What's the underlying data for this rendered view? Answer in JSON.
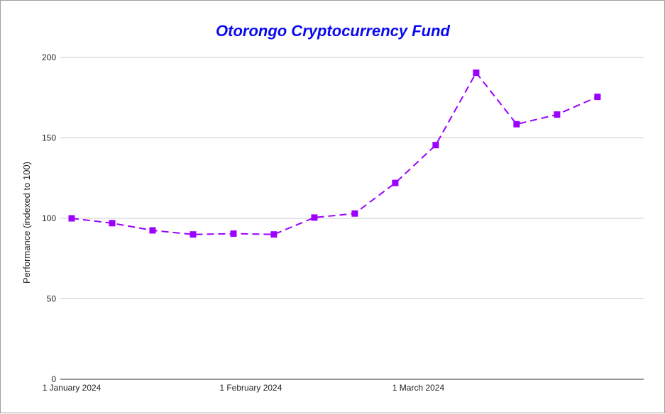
{
  "chart_data": {
    "type": "line",
    "title": "Otorongo Cryptocurrency Fund",
    "xlabel": "",
    "ylabel": "Performance (indexed to 100)",
    "ylim": [
      0,
      200
    ],
    "yticks": [
      0,
      50,
      100,
      150,
      200
    ],
    "x_tick_labels": [
      "1 January 2024",
      "1 February 2024",
      "1 March 2024"
    ],
    "x_tick_dates": [
      "2024-01-01",
      "2024-02-01",
      "2024-03-01"
    ],
    "xlim": [
      "2024-01-01",
      "2024-04-09"
    ],
    "grid": true,
    "line_style": "dashed",
    "marker": "square",
    "series": [
      {
        "x": [
          "2024-01-01",
          "2024-01-08",
          "2024-01-15",
          "2024-01-22",
          "2024-01-29",
          "2024-02-05",
          "2024-02-12",
          "2024-02-19",
          "2024-02-26",
          "2024-03-04",
          "2024-03-11",
          "2024-03-18",
          "2024-03-25",
          "2024-04-01"
        ],
        "values": [
          100,
          97,
          92.5,
          90,
          90.5,
          90,
          100.5,
          103,
          122,
          145.5,
          190.5,
          158.5,
          164.5,
          175.5
        ]
      }
    ]
  },
  "colors": {
    "title": "#0a0af0",
    "series": "#9b00ff",
    "grid": "#cccccc",
    "axis": "#333333"
  }
}
